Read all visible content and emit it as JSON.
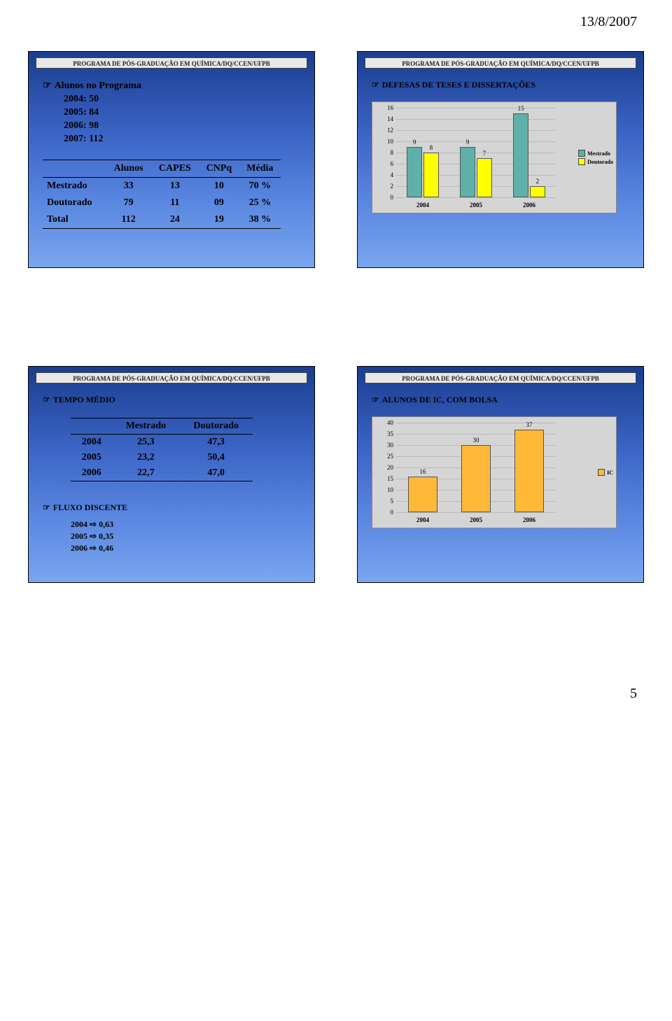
{
  "page": {
    "date": "13/8/2007",
    "number": "5"
  },
  "header_title": "PROGRAMA DE PÓS-GRADUAÇÃO EM QUÍMICA/DQ/CCEN/UFPB",
  "slide1": {
    "heading": "Alunos no Programa",
    "lines": [
      "2004: 50",
      "2005: 84",
      "2006: 98",
      "2007: 112"
    ],
    "table": {
      "cols": [
        "Alunos",
        "CAPES",
        "CNPq",
        "Média"
      ],
      "rows": [
        {
          "label": "Mestrado",
          "c1": "33",
          "c2": "13",
          "c3": "10",
          "c4": "70 %"
        },
        {
          "label": "Doutorado",
          "c1": "79",
          "c2": "11",
          "c3": "09",
          "c4": "25 %"
        },
        {
          "label": "Total",
          "c1": "112",
          "c2": "24",
          "c3": "19",
          "c4": "38 %"
        }
      ]
    }
  },
  "slide2": {
    "title": "DEFESAS DE TESES E DISSERTAÇÕES",
    "chart": {
      "type": "grouped-bar",
      "categories": [
        "2004",
        "2005",
        "2006"
      ],
      "series": [
        {
          "name": "Mestrado",
          "color": "#5fb0a8",
          "values": [
            9,
            9,
            15
          ]
        },
        {
          "name": "Doutorado",
          "color": "#ffff00",
          "values": [
            8,
            7,
            2
          ]
        }
      ],
      "ymax": 16,
      "ytick_step": 2,
      "background": "#d5d5d5",
      "grid_color": "#bbbbbb",
      "label_fontsize": 9
    }
  },
  "slide3": {
    "title": "TEMPO MÉDIO",
    "table": {
      "cols": [
        "Mestrado",
        "Doutorado"
      ],
      "rows": [
        {
          "y": "2004",
          "m": "25,3",
          "d": "47,3"
        },
        {
          "y": "2005",
          "m": "23,2",
          "d": "50,4"
        },
        {
          "y": "2006",
          "m": "22,7",
          "d": "47,0"
        }
      ]
    },
    "fluxo_title": "FLUXO DISCENTE",
    "fluxo": [
      {
        "y": "2004",
        "v": "0,63"
      },
      {
        "y": "2005",
        "v": "0,35"
      },
      {
        "y": "2006",
        "v": "0,46"
      }
    ]
  },
  "slide4": {
    "title": "ALUNOS DE IC, COM BOLSA",
    "chart": {
      "type": "bar",
      "categories": [
        "2004",
        "2005",
        "2006"
      ],
      "series": [
        {
          "name": "IC",
          "color": "#ffb838",
          "values": [
            16,
            30,
            37
          ]
        }
      ],
      "ymax": 40,
      "ytick_step": 5,
      "background": "#d5d5d5",
      "grid_color": "#bbbbbb",
      "label_fontsize": 9
    }
  }
}
